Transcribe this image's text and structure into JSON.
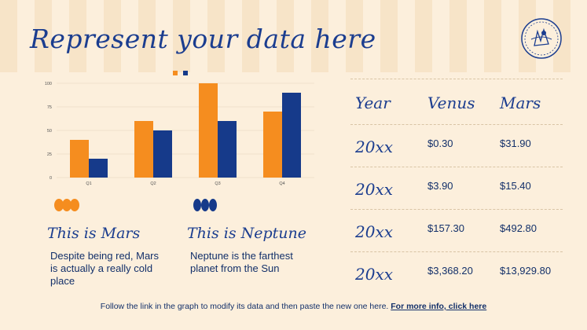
{
  "title": "Represent your data here",
  "colors": {
    "orange": "#f58d1f",
    "navy": "#163a8a",
    "background": "#fcefdc"
  },
  "chart_data": {
    "type": "bar",
    "categories": [
      "Q1",
      "Q2",
      "Q3",
      "Q4"
    ],
    "series": [
      {
        "values": [
          40,
          60,
          100,
          70
        ],
        "color": "#f58d1f"
      },
      {
        "values": [
          20,
          50,
          60,
          90
        ],
        "color": "#163a8a"
      }
    ],
    "yticks": [
      "0",
      "25",
      "50",
      "75",
      "100"
    ],
    "ylim": [
      0,
      100
    ],
    "grid": true,
    "legend": "top-center"
  },
  "cards": [
    {
      "title": "This is Mars",
      "body": "Despite being red, Mars is actually a really cold place"
    },
    {
      "title": "This is Neptune",
      "body": "Neptune is the farthest planet from the Sun"
    }
  ],
  "table": {
    "headers": [
      "Year",
      "Venus",
      "Mars"
    ],
    "rows": [
      {
        "year": "20xx",
        "venus": "$0.30",
        "mars": "$31.90"
      },
      {
        "year": "20xx",
        "venus": "$3.90",
        "mars": "$15.40"
      },
      {
        "year": "20xx",
        "venus": "$157.30",
        "mars": "$492.80"
      },
      {
        "year": "20xx",
        "venus": "$3,368.20",
        "mars": "$13,929.80"
      }
    ]
  },
  "footer": {
    "text": "Follow the link in the graph to modify its data and then paste the new one here. ",
    "link": "For more info, click here"
  }
}
